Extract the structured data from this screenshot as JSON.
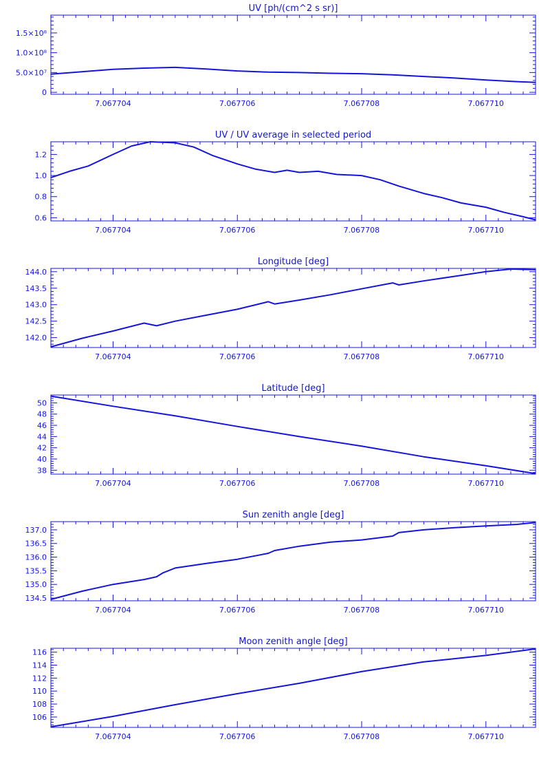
{
  "chart_data": [
    {
      "type": "line",
      "title": "UV [ph/(cm^2 s sr)]",
      "xlabel": "",
      "ylabel": "",
      "xlim": [
        7.067703,
        7.0677108
      ],
      "ylim": [
        -5000000,
        195000000
      ],
      "x_ticks": [
        "7.067704",
        "7.067706",
        "7.067708",
        "7.067710"
      ],
      "x_tick_values": [
        7.067704,
        7.067706,
        7.067708,
        7.06771
      ],
      "y_ticks": [
        "0",
        "5.0×10⁷",
        "1.0×10⁸",
        "1.5×10⁸"
      ],
      "y_tick_values": [
        0,
        50000000,
        100000000,
        150000000
      ],
      "series": [
        {
          "x": [
            7.067703,
            7.0677035,
            7.067704,
            7.0677045,
            7.067705,
            7.0677055,
            7.067706,
            7.0677065,
            7.067707,
            7.0677075,
            7.067708,
            7.0677085,
            7.067709,
            7.0677095,
            7.06771,
            7.0677105,
            7.0677108
          ],
          "y": [
            46000000,
            52000000,
            58000000,
            61000000,
            63000000,
            59000000,
            54000000,
            51000000,
            50000000,
            48000000,
            47000000,
            44000000,
            40000000,
            36000000,
            31000000,
            27000000,
            25000000
          ]
        }
      ]
    },
    {
      "type": "line",
      "title": "UV / UV average in selected period",
      "xlabel": "",
      "ylabel": "",
      "xlim": [
        7.067703,
        7.0677108
      ],
      "ylim": [
        0.57,
        1.32
      ],
      "x_ticks": [
        "7.067704",
        "7.067706",
        "7.067708",
        "7.067710"
      ],
      "x_tick_values": [
        7.067704,
        7.067706,
        7.067708,
        7.06771
      ],
      "y_ticks": [
        "0.6",
        "0.8",
        "1.0",
        "1.2"
      ],
      "y_tick_values": [
        0.6,
        0.8,
        1.0,
        1.2
      ],
      "series": [
        {
          "x": [
            7.067703,
            7.0677033,
            7.0677036,
            7.067704,
            7.0677043,
            7.0677046,
            7.067705,
            7.0677053,
            7.0677056,
            7.067706,
            7.0677063,
            7.0677066,
            7.0677068,
            7.067707,
            7.0677073,
            7.0677076,
            7.067708,
            7.0677083,
            7.0677086,
            7.067709,
            7.0677093,
            7.0677096,
            7.06771,
            7.0677103,
            7.0677106,
            7.0677108
          ],
          "y": [
            0.98,
            1.04,
            1.09,
            1.2,
            1.28,
            1.32,
            1.31,
            1.27,
            1.19,
            1.11,
            1.06,
            1.03,
            1.05,
            1.03,
            1.04,
            1.01,
            1.0,
            0.96,
            0.9,
            0.83,
            0.79,
            0.74,
            0.7,
            0.65,
            0.61,
            0.58
          ]
        }
      ]
    },
    {
      "type": "line",
      "title": "Longitude [deg]",
      "xlabel": "",
      "ylabel": "",
      "xlim": [
        7.067703,
        7.0677108
      ],
      "ylim": [
        141.7,
        144.1
      ],
      "x_ticks": [
        "7.067704",
        "7.067706",
        "7.067708",
        "7.067710"
      ],
      "x_tick_values": [
        7.067704,
        7.067706,
        7.067708,
        7.06771
      ],
      "y_ticks": [
        "142.0",
        "142.5",
        "143.0",
        "143.5",
        "144.0"
      ],
      "y_tick_values": [
        142.0,
        142.5,
        143.0,
        143.5,
        144.0
      ],
      "series": [
        {
          "x": [
            7.067703,
            7.0677035,
            7.067704,
            7.0677045,
            7.0677047,
            7.067705,
            7.0677055,
            7.067706,
            7.0677065,
            7.0677066,
            7.067707,
            7.0677075,
            7.067708,
            7.0677085,
            7.0677086,
            7.067709,
            7.0677095,
            7.06771,
            7.0677104,
            7.0677108
          ],
          "y": [
            141.72,
            141.98,
            142.2,
            142.44,
            142.36,
            142.5,
            142.68,
            142.86,
            143.09,
            143.02,
            143.14,
            143.3,
            143.48,
            143.66,
            143.6,
            143.72,
            143.86,
            144.0,
            144.08,
            144.06
          ]
        }
      ]
    },
    {
      "type": "line",
      "title": "Latitude [deg]",
      "xlabel": "",
      "ylabel": "",
      "xlim": [
        7.067703,
        7.0677108
      ],
      "ylim": [
        37.3,
        51.4
      ],
      "x_ticks": [
        "7.067704",
        "7.067706",
        "7.067708",
        "7.067710"
      ],
      "x_tick_values": [
        7.067704,
        7.067706,
        7.067708,
        7.06771
      ],
      "y_ticks": [
        "38",
        "40",
        "42",
        "44",
        "46",
        "48",
        "50"
      ],
      "y_tick_values": [
        38,
        40,
        42,
        44,
        46,
        48,
        50
      ],
      "series": [
        {
          "x": [
            7.067703,
            7.067704,
            7.067705,
            7.067706,
            7.067707,
            7.067708,
            7.067709,
            7.06771,
            7.0677108
          ],
          "y": [
            51.2,
            49.4,
            47.7,
            45.8,
            44.0,
            42.3,
            40.4,
            38.8,
            37.4
          ]
        }
      ]
    },
    {
      "type": "line",
      "title": "Sun zenith angle [deg]",
      "xlabel": "",
      "ylabel": "",
      "xlim": [
        7.067703,
        7.0677108
      ],
      "ylim": [
        134.4,
        137.3
      ],
      "x_ticks": [
        "7.067704",
        "7.067706",
        "7.067708",
        "7.067710"
      ],
      "x_tick_values": [
        7.067704,
        7.067706,
        7.067708,
        7.06771
      ],
      "y_ticks": [
        "134.5",
        "135.0",
        "135.5",
        "136.0",
        "136.5",
        "137.0"
      ],
      "y_tick_values": [
        134.5,
        135.0,
        135.5,
        136.0,
        136.5,
        137.0
      ],
      "series": [
        {
          "x": [
            7.067703,
            7.0677035,
            7.067704,
            7.0677045,
            7.0677047,
            7.0677048,
            7.067705,
            7.0677055,
            7.067706,
            7.0677065,
            7.0677066,
            7.067707,
            7.0677075,
            7.067708,
            7.0677085,
            7.0677086,
            7.067709,
            7.0677095,
            7.06771,
            7.0677105,
            7.0677108
          ],
          "y": [
            134.45,
            134.75,
            135.0,
            135.18,
            135.28,
            135.42,
            135.6,
            135.77,
            135.92,
            136.14,
            136.24,
            136.4,
            136.55,
            136.63,
            136.77,
            136.9,
            137.0,
            137.08,
            137.14,
            137.2,
            137.27
          ]
        }
      ]
    },
    {
      "type": "line",
      "title": "Moon zenith angle [deg]",
      "xlabel": "",
      "ylabel": "",
      "xlim": [
        7.067703,
        7.0677108
      ],
      "ylim": [
        104.4,
        116.6
      ],
      "x_ticks": [
        "7.067704",
        "7.067706",
        "7.067708",
        "7.067710"
      ],
      "x_tick_values": [
        7.067704,
        7.067706,
        7.067708,
        7.06771
      ],
      "y_ticks": [
        "106",
        "108",
        "110",
        "112",
        "114",
        "116"
      ],
      "y_tick_values": [
        106,
        108,
        110,
        112,
        114,
        116
      ],
      "series": [
        {
          "x": [
            7.067703,
            7.067704,
            7.067705,
            7.067706,
            7.067707,
            7.067708,
            7.067709,
            7.06771,
            7.0677108
          ],
          "y": [
            104.5,
            106.1,
            107.9,
            109.6,
            111.2,
            113.0,
            114.5,
            115.5,
            116.5
          ]
        }
      ]
    }
  ],
  "colors": {
    "ink": "#1414dc",
    "background": "#ffffff"
  }
}
